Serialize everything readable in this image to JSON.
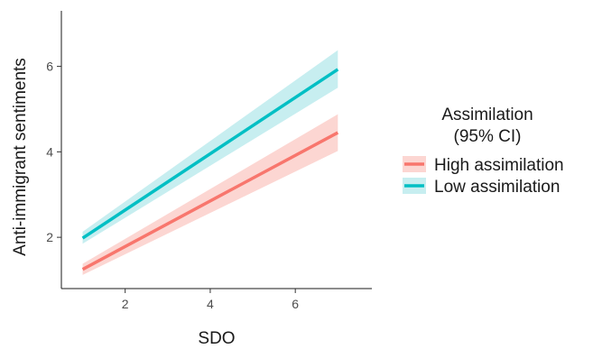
{
  "chart_data": {
    "type": "line",
    "xlabel": "SDO",
    "ylabel": "Anti-immigrant sentiments",
    "xlim": [
      0.5,
      7.8
    ],
    "ylim": [
      0.8,
      7.3
    ],
    "xticks": [
      2,
      4,
      6
    ],
    "yticks": [
      2,
      4,
      6
    ],
    "grid": false,
    "legend": {
      "title_lines": [
        "Assimilation",
        "(95% CI)"
      ],
      "position": "right"
    },
    "series": [
      {
        "name": "High assimilation",
        "color": "#F8766D",
        "band_color": "#FCD6D2",
        "x": [
          1,
          7
        ],
        "y": [
          1.25,
          4.45
        ],
        "ci_lower": [
          1.12,
          4.02
        ],
        "ci_upper": [
          1.38,
          4.88
        ]
      },
      {
        "name": "Low assimilation",
        "color": "#00BFC4",
        "band_color": "#C7EEF0",
        "x": [
          1,
          7
        ],
        "y": [
          1.98,
          5.93
        ],
        "ci_lower": [
          1.85,
          5.5
        ],
        "ci_upper": [
          2.13,
          6.38
        ]
      }
    ]
  }
}
